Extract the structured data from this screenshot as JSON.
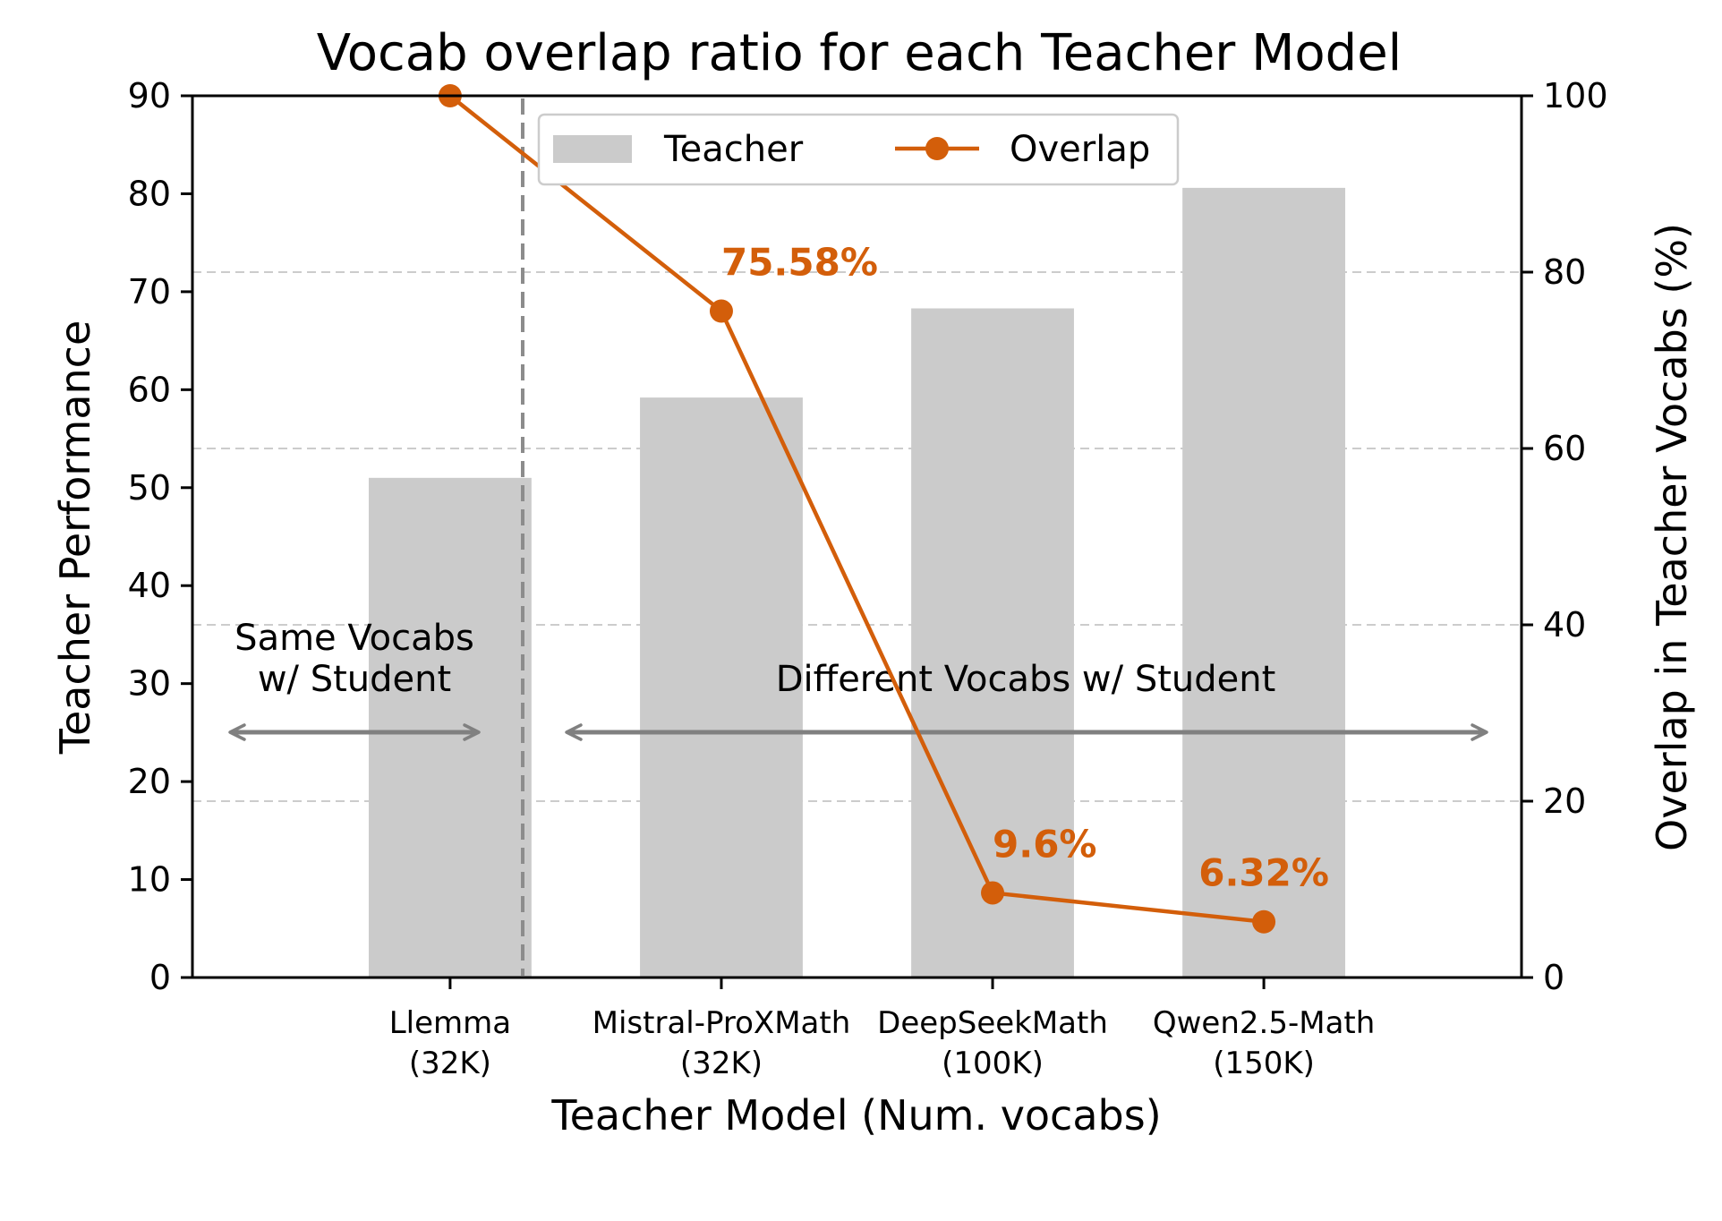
{
  "chart_data": {
    "type": "bar",
    "title": "Vocab overlap ratio for each Teacher Model",
    "xlabel": "Teacher Model (Num. vocabs)",
    "ylabel": "Teacher Performance",
    "y2label": "Overlap in Teacher Vocabs (%)",
    "ylim": [
      0,
      90
    ],
    "y2lim": [
      0,
      100
    ],
    "yticks": [
      0,
      10,
      20,
      30,
      40,
      50,
      60,
      70,
      80,
      90
    ],
    "y2ticks": [
      0,
      20,
      40,
      60,
      80,
      100
    ],
    "categories": [
      [
        "Llemma",
        "(32K)"
      ],
      [
        "Mistral-ProXMath",
        "(32K)"
      ],
      [
        "DeepSeekMath",
        "(100K)"
      ],
      [
        "Qwen2.5-Math",
        "(150K)"
      ]
    ],
    "series": [
      {
        "name": "Teacher",
        "type": "bar",
        "axis": "left",
        "color": "#cbcbcb",
        "values": [
          51.0,
          59.2,
          68.3,
          80.6
        ]
      },
      {
        "name": "Overlap",
        "type": "line",
        "axis": "right",
        "color": "#d35e0a",
        "values": [
          100,
          75.58,
          9.6,
          6.32
        ]
      }
    ],
    "data_labels": [
      "",
      "75.58%",
      "9.6%",
      "6.32%"
    ],
    "annotations": {
      "same": [
        "Same Vocabs",
        "w/ Student"
      ],
      "different": "Different Vocabs w/ Student"
    },
    "right_gridlines": [
      20,
      40,
      60,
      80
    ],
    "legend_position": "top-center"
  }
}
